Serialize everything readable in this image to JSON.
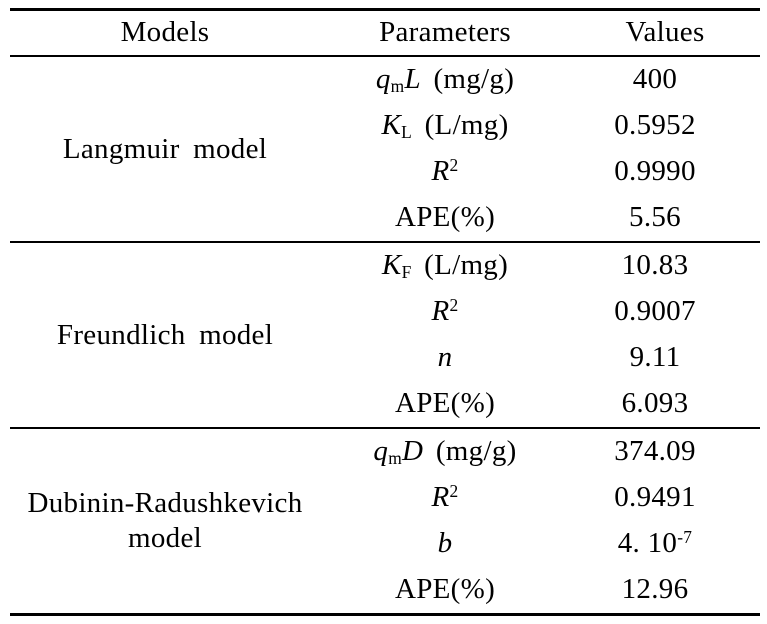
{
  "table": {
    "headers": [
      "Models",
      "Parameters",
      "Values"
    ],
    "sections": [
      {
        "model_line1": "Langmuir model",
        "model_line2": "",
        "rows": [
          {
            "p": {
              "italic": "q",
              "sub": "m",
              "italic2": "L",
              "roman": " (mg/g)"
            },
            "v": {
              "text": "400"
            }
          },
          {
            "p": {
              "italic": "K",
              "sub": "L",
              "roman": " (L/mg)"
            },
            "v": {
              "text": "0.5952"
            }
          },
          {
            "p": {
              "italic": "R",
              "sup": "2"
            },
            "v": {
              "text": "0.9990"
            }
          },
          {
            "p": {
              "roman": "APE(%)"
            },
            "v": {
              "text": "5.56"
            }
          }
        ]
      },
      {
        "model_line1": "Freundlich model",
        "model_line2": "",
        "rows": [
          {
            "p": {
              "italic": "K",
              "sub": "F",
              "roman": " (L/mg)"
            },
            "v": {
              "text": "10.83"
            }
          },
          {
            "p": {
              "italic": "R",
              "sup": "2"
            },
            "v": {
              "text": "0.9007"
            }
          },
          {
            "p": {
              "italic": "n"
            },
            "v": {
              "text": "9.11"
            }
          },
          {
            "p": {
              "roman": "APE(%)"
            },
            "v": {
              "text": "6.093"
            }
          }
        ]
      },
      {
        "model_line1": "Dubinin-Radushkevich",
        "model_line2": "model",
        "rows": [
          {
            "p": {
              "italic": "q",
              "sub": "m",
              "italic2": "D",
              "roman": " (mg/g)"
            },
            "v": {
              "text": "374.09"
            }
          },
          {
            "p": {
              "italic": "R",
              "sup": "2"
            },
            "v": {
              "text": "0.9491"
            }
          },
          {
            "p": {
              "italic": "b"
            },
            "v": {
              "text": "4. 10",
              "sup": "-7"
            }
          },
          {
            "p": {
              "roman": "APE(%)"
            },
            "v": {
              "text": "12.96"
            }
          }
        ]
      }
    ],
    "colors": {
      "text": "#000000",
      "background": "#ffffff",
      "rule": "#000000"
    }
  }
}
